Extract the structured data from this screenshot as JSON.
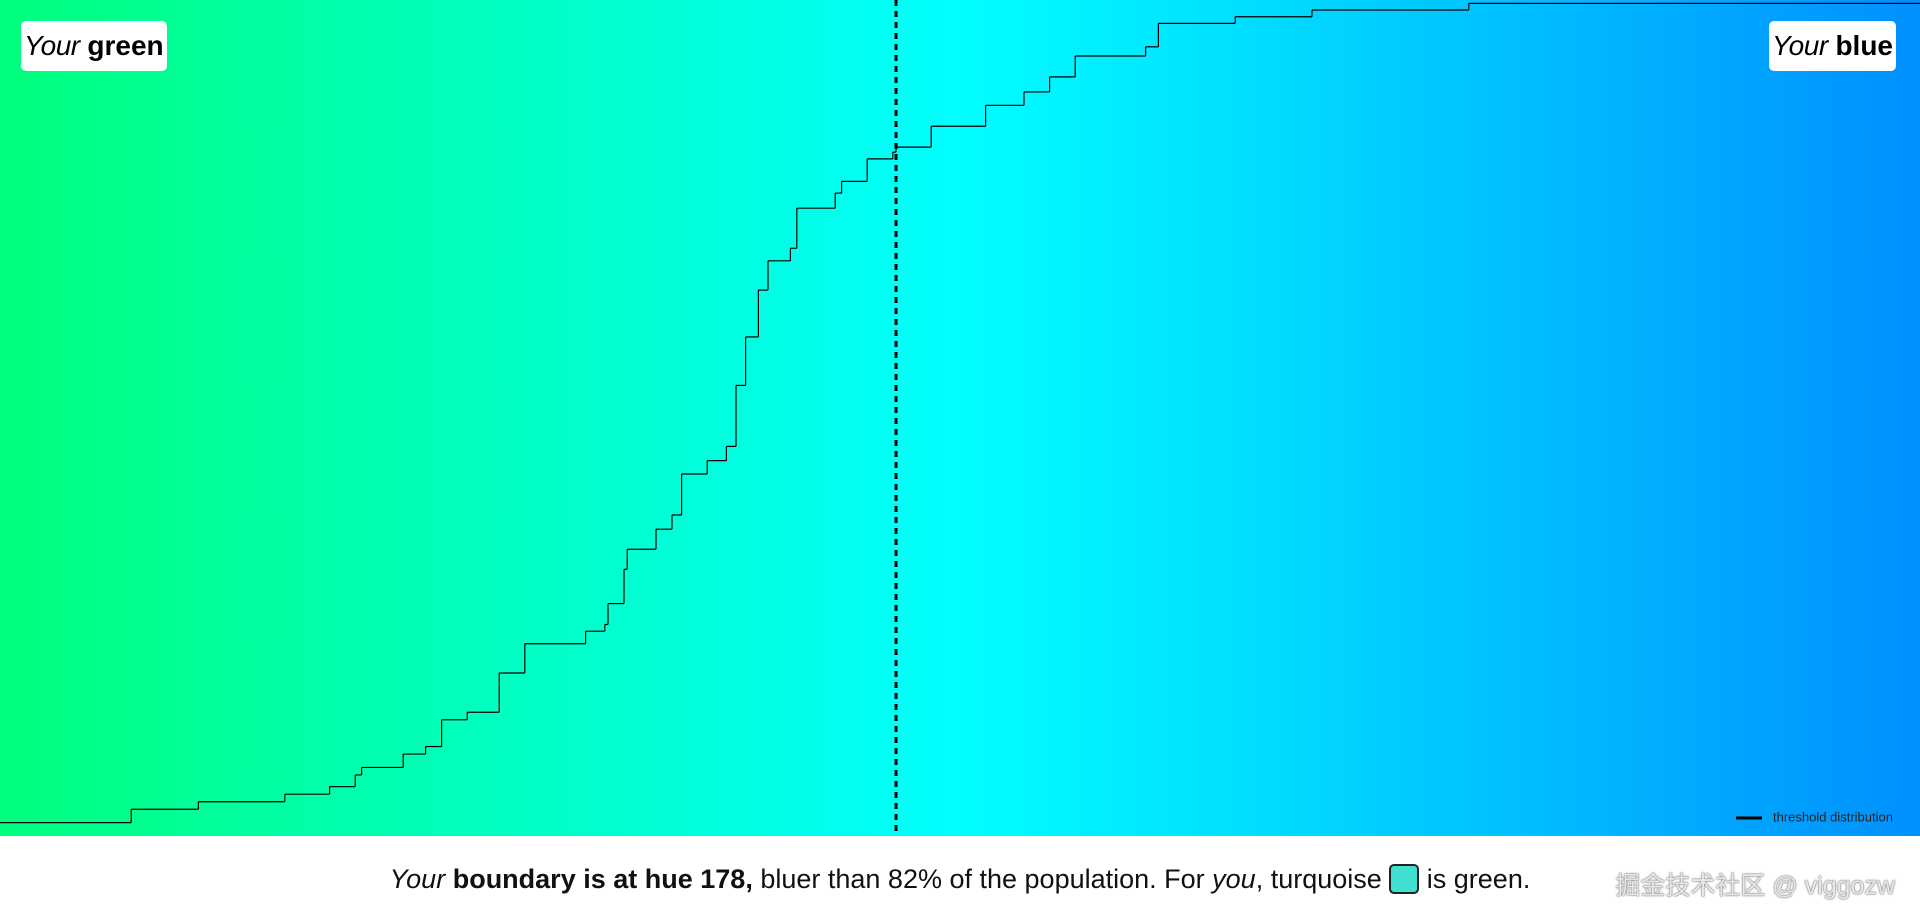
{
  "chart_data": {
    "type": "step",
    "x": [
      150.0,
      154.1,
      156.2,
      158.9,
      160.3,
      161.1,
      161.3,
      162.6,
      163.3,
      163.8,
      164.6,
      165.6,
      166.4,
      168.3,
      168.9,
      169.0,
      169.5,
      169.6,
      170.5,
      171.0,
      171.3,
      172.1,
      172.7,
      173.0,
      173.3,
      173.7,
      174.0,
      174.7,
      174.9,
      176.1,
      176.3,
      177.1,
      177.9,
      178.0,
      179.1,
      180.8,
      182.0,
      182.8,
      183.6,
      185.8,
      186.2,
      188.6,
      191.0,
      195.9
    ],
    "values": [
      1.6,
      3.2,
      4.1,
      5.0,
      5.9,
      7.3,
      8.2,
      9.8,
      10.7,
      13.9,
      14.8,
      19.5,
      23.0,
      24.5,
      25.3,
      27.8,
      31.9,
      34.3,
      36.7,
      38.4,
      43.3,
      44.9,
      46.6,
      53.9,
      59.7,
      65.3,
      68.8,
      70.3,
      75.1,
      76.9,
      78.3,
      81.0,
      81.8,
      82.4,
      84.9,
      87.4,
      89.0,
      90.8,
      93.3,
      94.4,
      97.2,
      98.0,
      98.8,
      99.6
    ],
    "xlim": [
      150,
      210
    ],
    "ylim": [
      0,
      100
    ],
    "color": "#000000",
    "gradient": [
      "#00ff7c",
      "#00ffff",
      "#0090ff"
    ],
    "boundary": 178,
    "boundary_percentile": 82,
    "left_label": {
      "italic": "Your",
      "bold": "green"
    },
    "right_label": {
      "italic": "Your",
      "bold": "blue"
    },
    "legend": {
      "label": "threshold distribution",
      "position": "lower-right"
    }
  },
  "caption": {
    "your": "Your",
    "boundary_text": "boundary is at hue ",
    "comma": ",",
    "bluer": " bluer than ",
    "rest": "% of the population. For ",
    "you": "you",
    "turquoise": ", turquoise ",
    "swatch_color": "#40e0d0",
    "end": " is green."
  },
  "watermark": "掘金技术社区 @ viggozw"
}
